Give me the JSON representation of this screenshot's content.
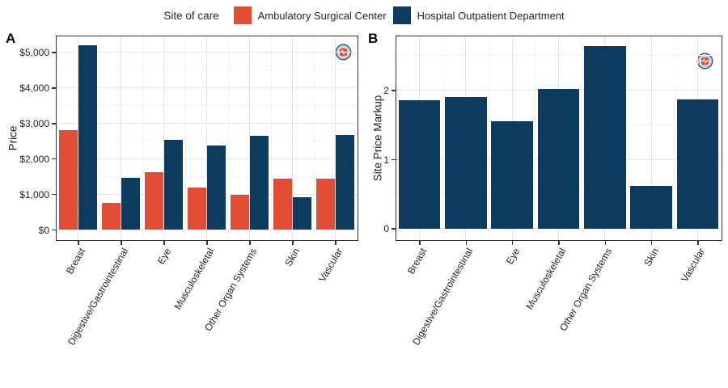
{
  "legend": {
    "title": "Site of care",
    "items": [
      {
        "label": "Ambulatory Surgical Center",
        "color": "#E24D35"
      },
      {
        "label": "Hospital Outpatient Department",
        "color": "#0C3B5E"
      }
    ]
  },
  "watermark": {
    "icon": "pulse-badge-icon",
    "ring_color": "#24567C",
    "badge_color": "#E24D35",
    "background": "#D8E0EA"
  },
  "colors": {
    "asc_orange": "#E24D35",
    "hopd_navy": "#0C3B5E",
    "panel_border": "#2F2F2F",
    "grid_major": "#E4E4E4",
    "grid_minor": "#F1F1F1"
  },
  "chart_data": [
    {
      "type": "bar",
      "panel_label": "A",
      "title": "",
      "xlabel": "",
      "ylabel": "Price",
      "legend_position": "top",
      "grid": true,
      "categories": [
        "Breast",
        "Digestive/Gastrointestinal",
        "Eye",
        "Musculoskeletal",
        "Other Organ Systems",
        "Skin",
        "Vascular"
      ],
      "series": [
        {
          "name": "Ambulatory Surgical Center",
          "color": "#E24D35",
          "values": [
            2800,
            760,
            1620,
            1180,
            990,
            1430,
            1430
          ]
        },
        {
          "name": "Hospital Outpatient Department",
          "color": "#0C3B5E",
          "values": [
            5180,
            1450,
            2520,
            2360,
            2650,
            910,
            2670
          ]
        }
      ],
      "y_ticks": [
        0,
        1000,
        2000,
        3000,
        4000,
        5000
      ],
      "y_tick_labels": [
        "$0",
        "$1,000",
        "$2,000",
        "$3,000",
        "$4,000",
        "$5,000"
      ],
      "ylim": [
        -270,
        5440
      ]
    },
    {
      "type": "bar",
      "panel_label": "B",
      "title": "",
      "xlabel": "",
      "ylabel": "Site Price Markup",
      "legend_position": "none",
      "grid": true,
      "categories": [
        "Breast",
        "Digestive/Gastrointestinal",
        "Eye",
        "Musculoskeletal",
        "Other Organ Systems",
        "Skin",
        "Vascular"
      ],
      "series": [
        {
          "name": "Hospital Outpatient Department",
          "color": "#0C3B5E",
          "values": [
            1.85,
            1.9,
            1.55,
            2.02,
            2.64,
            0.61,
            1.87
          ]
        }
      ],
      "y_ticks": [
        0,
        1,
        2
      ],
      "y_tick_labels": [
        "0",
        "1",
        "2"
      ],
      "ylim": [
        -0.155,
        2.775
      ]
    }
  ]
}
